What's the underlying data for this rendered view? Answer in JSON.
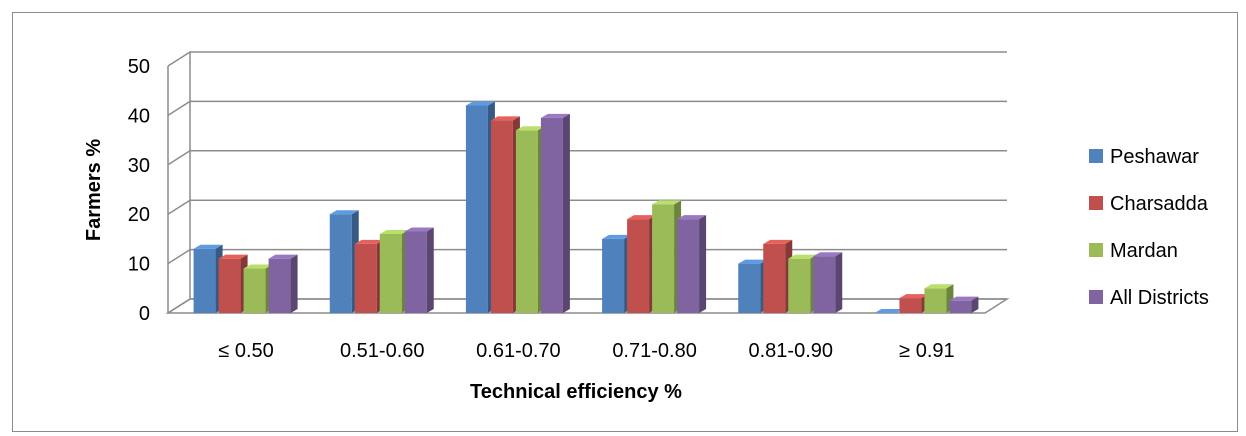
{
  "chart_data": {
    "type": "bar",
    "title": "",
    "xlabel": "Technical efficiency %",
    "ylabel": "Farmers %",
    "ylim": [
      0,
      50
    ],
    "yticks": [
      "0",
      "10",
      "20",
      "30",
      "40",
      "50"
    ],
    "grid": true,
    "legend_position": "right",
    "categories": [
      "≤ 0.50",
      "0.51-0.60",
      "0.61-0.70",
      "0.71-0.80",
      "0.81-0.90",
      "≥ 0.91"
    ],
    "series": [
      {
        "name": "Peshawar",
        "color": "#4F81BD",
        "values": [
          13,
          20,
          42,
          15,
          10,
          0
        ]
      },
      {
        "name": "Charsadda",
        "color": "#C0504D",
        "values": [
          11,
          14,
          39,
          19,
          14,
          3
        ]
      },
      {
        "name": "Mardan",
        "color": "#9BBB59",
        "values": [
          9,
          16,
          37,
          22,
          11,
          5
        ]
      },
      {
        "name": "All Districts",
        "color": "#8064A2",
        "values": [
          11,
          16.5,
          39.5,
          19,
          11.5,
          2.5
        ]
      }
    ]
  }
}
